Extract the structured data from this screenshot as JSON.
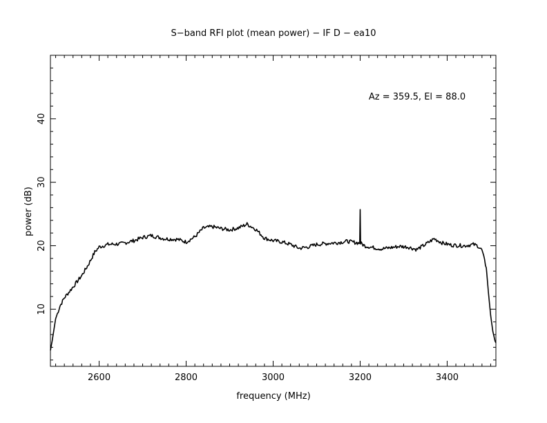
{
  "chart_data": {
    "type": "line",
    "title": "S−band RFI plot (mean power) − IF D − ea10",
    "xlabel": "frequency (MHz)",
    "ylabel": "power (dB)",
    "annotation": "Az = 359.5, El = 88.0",
    "xlim": [
      2488,
      3512
    ],
    "ylim": [
      1,
      50
    ],
    "x_ticks": [
      2600,
      2800,
      3000,
      3200,
      3400
    ],
    "y_ticks": [
      10,
      20,
      30,
      40
    ],
    "grid": false,
    "line_color": "#000000",
    "series": [
      {
        "x": [
          2488,
          2492,
          2500,
          2510,
          2520,
          2540,
          2560,
          2575,
          2590,
          2600,
          2620,
          2650,
          2680,
          2700,
          2720,
          2750,
          2780,
          2800,
          2820,
          2840,
          2860,
          2880,
          2900,
          2920,
          2940,
          2960,
          2980,
          3000,
          3020,
          3040,
          3060,
          3080,
          3100,
          3130,
          3150,
          3170,
          3190,
          3199,
          3200,
          3201,
          3210,
          3230,
          3250,
          3270,
          3290,
          3310,
          3330,
          3350,
          3370,
          3390,
          3410,
          3440,
          3460,
          3470,
          3480,
          3490,
          3495,
          3500,
          3505,
          3510,
          3512
        ],
        "y": [
          3.5,
          5,
          8.5,
          10.5,
          11.8,
          13.5,
          15.3,
          17,
          19,
          19.8,
          20.2,
          20.3,
          20.8,
          21.3,
          21.6,
          21.1,
          21.0,
          20.6,
          21.4,
          22.8,
          23.0,
          22.7,
          22.5,
          22.8,
          23.4,
          22.6,
          21.2,
          20.8,
          20.6,
          20.2,
          19.6,
          19.8,
          20.2,
          20.4,
          20.5,
          20.7,
          20.5,
          20.4,
          25.7,
          20.4,
          20.0,
          19.7,
          19.5,
          19.7,
          19.9,
          19.8,
          19.4,
          20.2,
          21.1,
          20.4,
          20.1,
          20.0,
          20.2,
          20.0,
          19.3,
          16.5,
          12.5,
          9,
          6.5,
          5,
          4.7
        ]
      }
    ]
  }
}
